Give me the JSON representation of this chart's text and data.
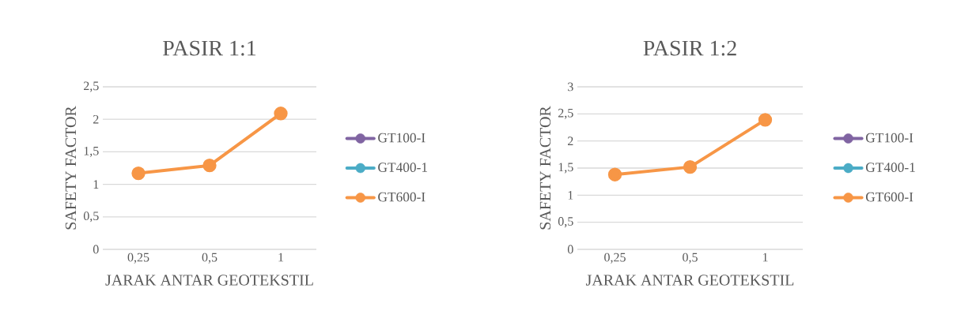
{
  "chart_data": [
    {
      "type": "line",
      "title": "PASIR 1:1",
      "xlabel": "JARAK ANTAR GEOTEKSTIL",
      "ylabel": "SAFETY FACTOR",
      "categories": [
        "0,25",
        "0,5",
        "1"
      ],
      "series": [
        {
          "name": "GT100-I",
          "color": "#8064a2",
          "values": [
            null,
            null,
            null
          ]
        },
        {
          "name": "GT400-1",
          "color": "#4bacc6",
          "values": [
            null,
            null,
            null
          ]
        },
        {
          "name": "GT600-I",
          "color": "#f79646",
          "values": [
            1.17,
            1.29,
            2.09
          ]
        }
      ],
      "ylim": [
        0,
        2.5
      ],
      "yticks": [
        0,
        {
          "value": 0.5,
          "label": "0,5"
        },
        1,
        {
          "value": 1.5,
          "label": "1,5"
        },
        2,
        {
          "value": 2.5,
          "label": "2,5"
        }
      ],
      "grid": "y",
      "legend": "right",
      "marker": "circle",
      "line_style": "solid"
    },
    {
      "type": "line",
      "title": "PASIR 1:2",
      "xlabel": "JARAK ANTAR GEOTEKSTIL",
      "ylabel": "SAFETY FACTOR",
      "categories": [
        "0,25",
        "0,5",
        "1"
      ],
      "series": [
        {
          "name": "GT100-I",
          "color": "#8064a2",
          "values": [
            null,
            null,
            null
          ]
        },
        {
          "name": "GT400-1",
          "color": "#4bacc6",
          "values": [
            null,
            null,
            null
          ]
        },
        {
          "name": "GT600-I",
          "color": "#f79646",
          "values": [
            1.38,
            1.52,
            2.39
          ]
        }
      ],
      "ylim": [
        0,
        3
      ],
      "yticks": [
        0,
        {
          "value": 0.5,
          "label": "0,5"
        },
        1,
        {
          "value": 1.5,
          "label": "1,5"
        },
        2,
        {
          "value": 2.5,
          "label": "2,5"
        },
        3
      ],
      "grid": "y",
      "legend": "right",
      "marker": "circle",
      "line_style": "solid"
    }
  ]
}
